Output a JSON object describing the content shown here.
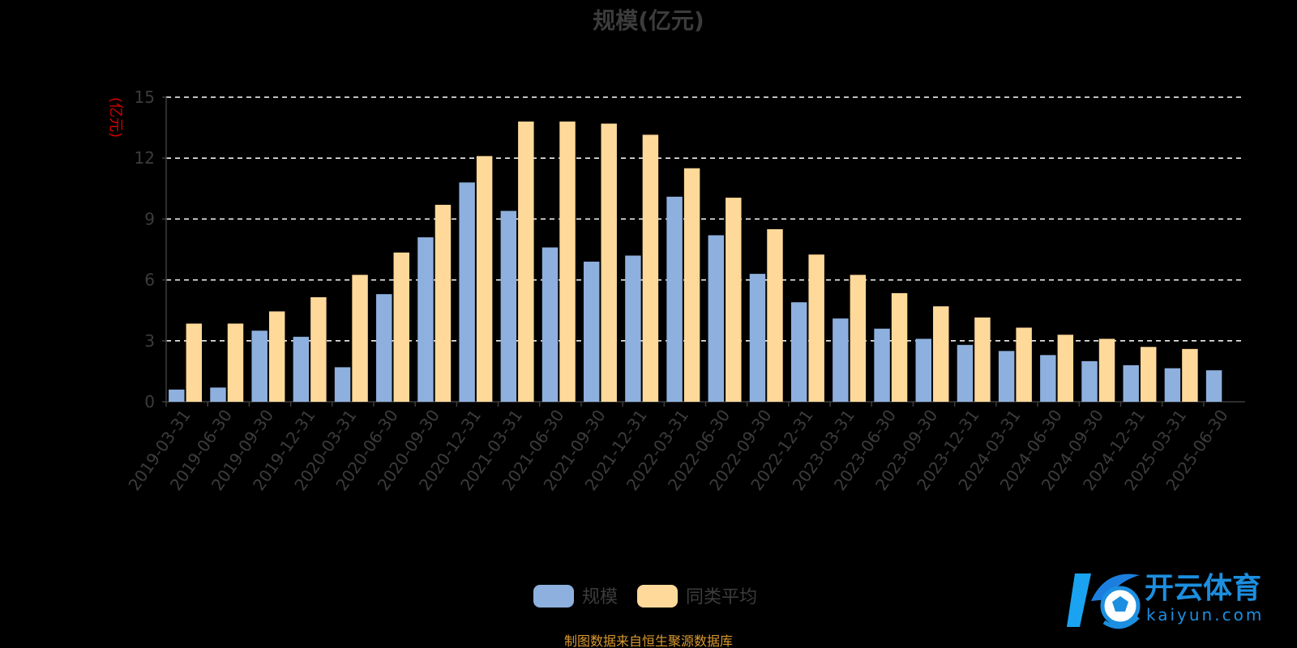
{
  "source_note": "制图数据来自恒生聚源数据库",
  "watermark": {
    "brand_cn": "开云体育",
    "brand_en": "kaiyun.com"
  },
  "colors": {
    "background": "#000000",
    "series_scale": "#8eb0de",
    "series_avg": "#ffd99a",
    "grid": "#ffffff",
    "axis": "#3c3c3c",
    "ylabel": "#d40000",
    "source_note": "#d9982f",
    "watermark": "#1c8fe0"
  },
  "chart_data": {
    "type": "bar",
    "title": "规模(亿元)",
    "ylabel": "(亿元)",
    "xlabel": "",
    "ylim": [
      0,
      15
    ],
    "yticks": [
      0,
      3,
      6,
      9,
      12,
      15
    ],
    "grid": true,
    "legend_position": "bottom-center",
    "categories": [
      "2019-03-31",
      "2019-06-30",
      "2019-09-30",
      "2019-12-31",
      "2020-03-31",
      "2020-06-30",
      "2020-09-30",
      "2020-12-31",
      "2021-03-31",
      "2021-06-30",
      "2021-09-30",
      "2021-12-31",
      "2022-03-31",
      "2022-06-30",
      "2022-09-30",
      "2022-12-31",
      "2023-03-31",
      "2023-06-30",
      "2023-09-30",
      "2023-12-31",
      "2024-03-31",
      "2024-06-30",
      "2024-09-30",
      "2024-12-31",
      "2025-03-31",
      "2025-06-30"
    ],
    "series": [
      {
        "name": "规模",
        "color": "#8eb0de",
        "values": [
          0.6,
          0.7,
          3.5,
          3.2,
          1.7,
          5.3,
          8.1,
          10.8,
          9.4,
          7.6,
          6.9,
          7.2,
          10.1,
          8.2,
          6.3,
          4.9,
          4.1,
          3.6,
          3.1,
          2.8,
          2.5,
          2.3,
          2.0,
          1.8,
          1.65,
          1.55
        ]
      },
      {
        "name": "同类平均",
        "color": "#ffd99a",
        "values": [
          3.85,
          3.85,
          4.45,
          5.15,
          6.25,
          7.35,
          9.7,
          12.1,
          13.8,
          13.8,
          13.7,
          13.15,
          11.5,
          10.05,
          8.5,
          7.25,
          6.25,
          5.35,
          4.7,
          4.15,
          3.65,
          3.3,
          3.1,
          2.7,
          2.6,
          null
        ]
      }
    ]
  }
}
